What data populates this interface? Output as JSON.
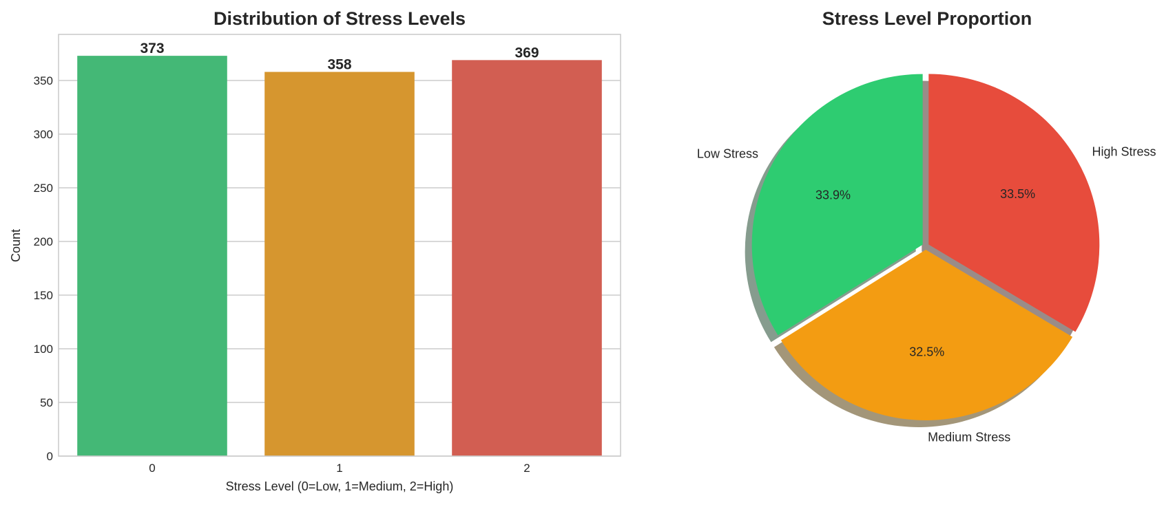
{
  "chart_data": [
    {
      "type": "bar",
      "title": "Distribution of Stress Levels",
      "xlabel": "Stress Level (0=Low, 1=Medium, 2=High)",
      "ylabel": "Count",
      "categories": [
        "0",
        "1",
        "2"
      ],
      "values": [
        373,
        358,
        369
      ],
      "value_labels": [
        "373",
        "358",
        "369"
      ],
      "colors": [
        "#44b876",
        "#d6962f",
        "#d25e52"
      ],
      "yticks": [
        0,
        50,
        100,
        150,
        200,
        250,
        300,
        350
      ],
      "ylim": [
        0,
        392
      ],
      "grid": "y",
      "legend": null
    },
    {
      "type": "pie",
      "title": "Stress Level Proportion",
      "labels": [
        "Low Stress",
        "Medium Stress",
        "High Stress"
      ],
      "values": [
        373,
        358,
        369
      ],
      "percent_labels": [
        "33.9%",
        "32.5%",
        "33.5%"
      ],
      "colors": [
        "#2ecc71",
        "#f39c12",
        "#e74c3c"
      ],
      "shadow_colors": [
        "#869c8e",
        "#a39679",
        "#9a8c88"
      ],
      "startangle": 90,
      "explode": [
        0.02,
        0.02,
        0.02
      ],
      "shadow": true,
      "legend": null
    }
  ]
}
